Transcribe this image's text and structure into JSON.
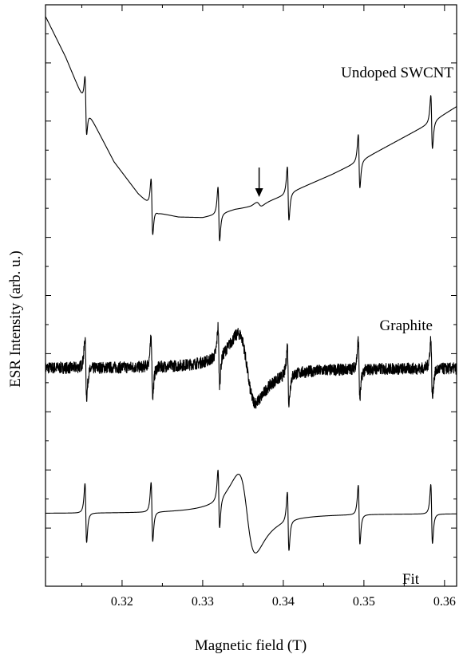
{
  "chart_data": {
    "type": "line",
    "title": "",
    "xlabel": "Magnetic field (T)",
    "ylabel": "ESR Intensity (arb. u.)",
    "xlim": [
      0.3105,
      0.3615
    ],
    "ylim": [
      0,
      1
    ],
    "x_ticks": [
      0.32,
      0.33,
      0.34,
      0.35,
      0.36
    ],
    "x_tick_labels": [
      "0.32",
      "0.33",
      "0.34",
      "0.35",
      "0.36"
    ],
    "y_tick_labels_shown": false,
    "grid": false,
    "legend": "none",
    "reference_lines_T": [
      0.3155,
      0.3237,
      0.332,
      0.3406,
      0.3494,
      0.3584
    ],
    "arrow_annotation_x": 0.337,
    "series": [
      {
        "name": "Undoped SWCNT",
        "background_points": [
          [
            0.3105,
            0.98
          ],
          [
            0.313,
            0.91
          ],
          [
            0.316,
            0.81
          ],
          [
            0.319,
            0.73
          ],
          [
            0.322,
            0.675
          ],
          [
            0.3245,
            0.642
          ],
          [
            0.327,
            0.635
          ],
          [
            0.33,
            0.634
          ],
          [
            0.332,
            0.64
          ],
          [
            0.334,
            0.648
          ],
          [
            0.336,
            0.652
          ],
          [
            0.338,
            0.662
          ],
          [
            0.34,
            0.672
          ],
          [
            0.343,
            0.69
          ],
          [
            0.346,
            0.708
          ],
          [
            0.35,
            0.735
          ],
          [
            0.354,
            0.765
          ],
          [
            0.358,
            0.795
          ],
          [
            0.3615,
            0.825
          ]
        ],
        "feature_at_T": 0.337
      },
      {
        "name": "Graphite",
        "baseline": 0.375,
        "broad_line_center_T": 0.3355,
        "broad_line_amplitude": 0.07,
        "noisy": true
      },
      {
        "name": "Fit",
        "baseline": 0.125,
        "broad_line_center_T": 0.3355,
        "broad_line_amplitude": 0.08,
        "noisy": false
      }
    ]
  }
}
